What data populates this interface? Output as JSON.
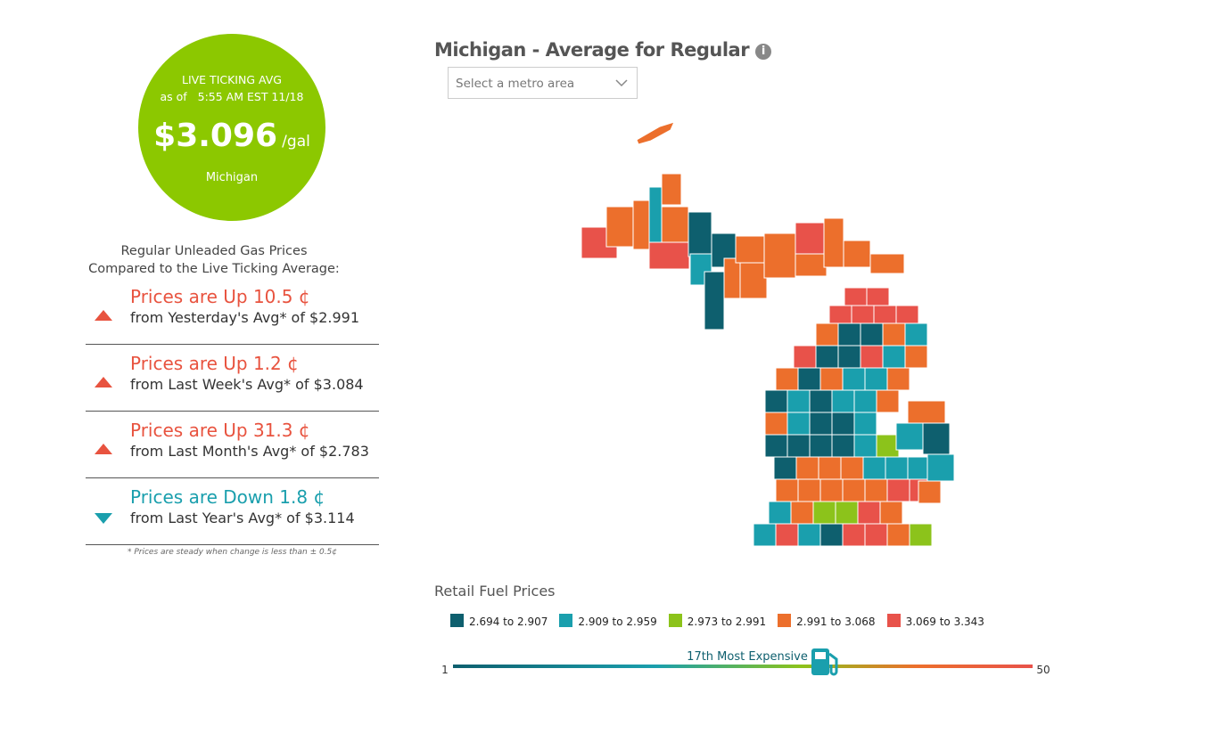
{
  "live_avg": {
    "label": "LIVE TICKING AVG",
    "as_of": "as of",
    "time": "5:55 AM EST 11/18",
    "price": "$3.096",
    "unit": "/gal",
    "state": "Michigan"
  },
  "comparison": {
    "heading_1": "Regular Unleaded Gas Prices",
    "heading_2": "Compared to the Live Ticking Average:",
    "items": [
      {
        "direction": "up",
        "change": "Prices are Up 10.5 ¢",
        "detail": "from Yesterday's Avg* of $2.991"
      },
      {
        "direction": "up",
        "change": "Prices are Up 1.2 ¢",
        "detail": "from Last Week's Avg* of $3.084"
      },
      {
        "direction": "up",
        "change": "Prices are Up 31.3 ¢",
        "detail": "from Last Month's Avg* of $2.783"
      },
      {
        "direction": "down",
        "change": "Prices are Down 1.8 ¢",
        "detail": "from Last Year's Avg* of $3.114"
      }
    ],
    "note": "* Prices are steady when change is less than ± 0.5¢"
  },
  "map": {
    "title": "Michigan - Average for Regular",
    "select_placeholder": "Select a metro area"
  },
  "legend": {
    "title": "Retail Fuel Prices",
    "bins": [
      {
        "label": "2.694 to 2.907",
        "color": "#0e5f6e"
      },
      {
        "label": "2.909 to 2.959",
        "color": "#1a9fad"
      },
      {
        "label": "2.973 to 2.991",
        "color": "#8cc31b"
      },
      {
        "label": "2.991 to 3.068",
        "color": "#ec6f2c"
      },
      {
        "label": "3.069 to 3.343",
        "color": "#e8524a"
      }
    ]
  },
  "rank": {
    "label": "17th Most Expensive",
    "min": "1",
    "max": "50"
  }
}
